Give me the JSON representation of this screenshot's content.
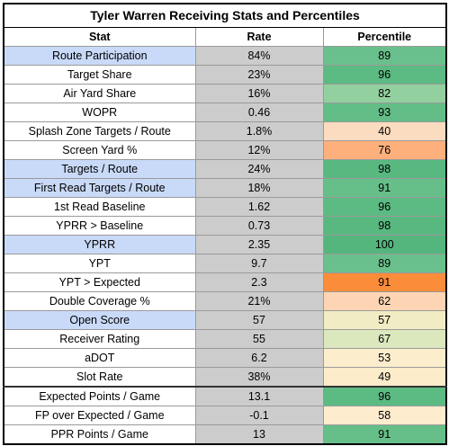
{
  "title": "Tyler Warren Receiving Stats and Percentiles",
  "headers": [
    "Stat",
    "Rate",
    "Percentile"
  ],
  "colors": {
    "highlight_stat": "#c9daf8",
    "rate_bg": "#cccccc"
  },
  "rows": [
    {
      "stat": "Route Participation",
      "rate": "84%",
      "pct": "89",
      "hl": true,
      "color": "#6ac08c",
      "sep": false
    },
    {
      "stat": "Target Share",
      "rate": "23%",
      "pct": "96",
      "hl": false,
      "color": "#5cba83",
      "sep": false
    },
    {
      "stat": "Air Yard Share",
      "rate": "16%",
      "pct": "82",
      "hl": false,
      "color": "#93d09f",
      "sep": false
    },
    {
      "stat": "WOPR",
      "rate": "0.46",
      "pct": "93",
      "hl": false,
      "color": "#63bd86",
      "sep": false
    },
    {
      "stat": "Splash Zone Targets / Route",
      "rate": "1.8%",
      "pct": "40",
      "hl": false,
      "color": "#fcdcc0",
      "sep": false
    },
    {
      "stat": "Screen Yard %",
      "rate": "12%",
      "pct": "76",
      "hl": false,
      "color": "#fdb07c",
      "sep": false
    },
    {
      "stat": "Targets / Route",
      "rate": "24%",
      "pct": "98",
      "hl": true,
      "color": "#58b880",
      "sep": false
    },
    {
      "stat": "First Read Targets / Route",
      "rate": "18%",
      "pct": "91",
      "hl": true,
      "color": "#66bf88",
      "sep": false
    },
    {
      "stat": "1st Read Baseline",
      "rate": "1.62",
      "pct": "96",
      "hl": false,
      "color": "#5cba83",
      "sep": false
    },
    {
      "stat": "YPRR > Baseline",
      "rate": "0.73",
      "pct": "98",
      "hl": false,
      "color": "#58b880",
      "sep": false
    },
    {
      "stat": "YPRR",
      "rate": "2.35",
      "pct": "100",
      "hl": true,
      "color": "#55b67d",
      "sep": false
    },
    {
      "stat": "YPT",
      "rate": "9.7",
      "pct": "89",
      "hl": false,
      "color": "#6ac08c",
      "sep": false
    },
    {
      "stat": "YPT > Expected",
      "rate": "2.3",
      "pct": "91",
      "hl": false,
      "color": "#fb8c3a",
      "sep": false
    },
    {
      "stat": "Double Coverage %",
      "rate": "21%",
      "pct": "62",
      "hl": false,
      "color": "#fdd5b4",
      "sep": false
    },
    {
      "stat": "Open Score",
      "rate": "57",
      "pct": "57",
      "hl": true,
      "color": "#f2ecc4",
      "sep": false
    },
    {
      "stat": "Receiver Rating",
      "rate": "55",
      "pct": "67",
      "hl": false,
      "color": "#dbe8bd",
      "sep": false
    },
    {
      "stat": "aDOT",
      "rate": "6.2",
      "pct": "53",
      "hl": false,
      "color": "#fcedcc",
      "sep": false
    },
    {
      "stat": "Slot Rate",
      "rate": "38%",
      "pct": "49",
      "hl": false,
      "color": "#fdecca",
      "sep": false
    },
    {
      "stat": "Expected Points / Game",
      "rate": "13.1",
      "pct": "96",
      "hl": false,
      "color": "#5cba83",
      "sep": true
    },
    {
      "stat": "FP over Expected / Game",
      "rate": "-0.1",
      "pct": "58",
      "hl": false,
      "color": "#fdeccd",
      "sep": false
    },
    {
      "stat": "PPR Points / Game",
      "rate": "13",
      "pct": "91",
      "hl": false,
      "color": "#66bf88",
      "sep": false
    }
  ]
}
